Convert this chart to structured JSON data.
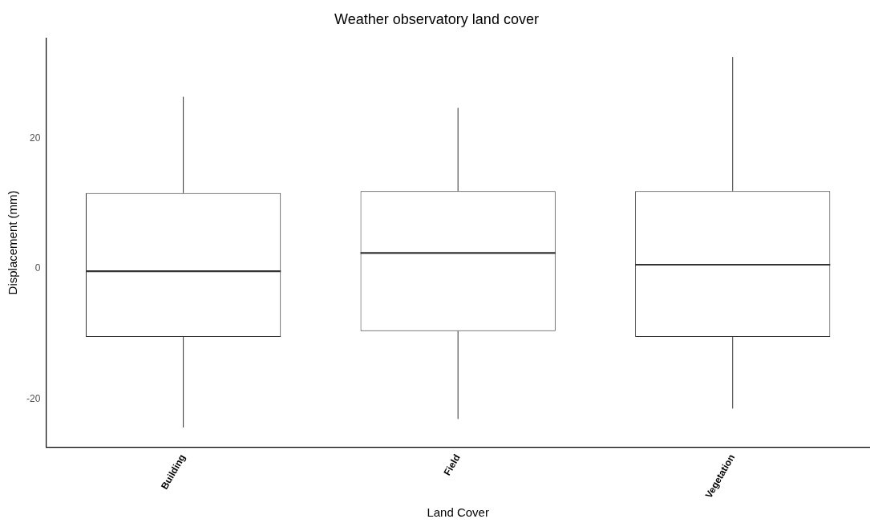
{
  "chart_data": {
    "type": "box",
    "title": "Weather observatory land cover",
    "xlabel": "Land Cover",
    "ylabel": "Displacement (mm)",
    "categories": [
      "Building",
      "Field",
      "Vegetation"
    ],
    "boxes": [
      {
        "low": -24.4,
        "q1": -10.5,
        "median": -0.4,
        "q3": 11.6,
        "high": 26.4
      },
      {
        "low": -23.1,
        "q1": -9.6,
        "median": 2.4,
        "q3": 11.9,
        "high": 24.7
      },
      {
        "low": -21.5,
        "q1": -10.5,
        "median": 0.6,
        "q3": 11.9,
        "high": 32.5
      }
    ],
    "ylim": [
      -27.4,
      35.4
    ],
    "yticks": [
      -20,
      0,
      20
    ]
  }
}
